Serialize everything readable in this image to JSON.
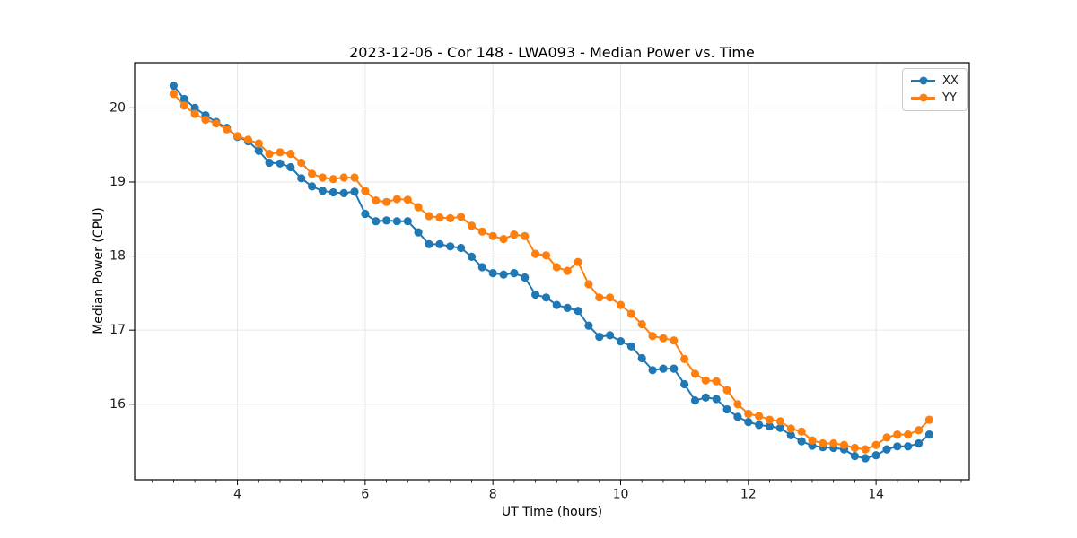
{
  "chart_data": {
    "type": "line",
    "title": "2023-12-06 - Cor 148 - LWA093 - Median Power vs. Time",
    "xlabel": "UT Time (hours)",
    "ylabel": "Median Power (CPU)",
    "x": [
      3.0,
      3.167,
      3.333,
      3.5,
      3.667,
      3.833,
      4.0,
      4.167,
      4.333,
      4.5,
      4.667,
      4.833,
      5.0,
      5.167,
      5.333,
      5.5,
      5.667,
      5.833,
      6.0,
      6.167,
      6.333,
      6.5,
      6.667,
      6.833,
      7.0,
      7.167,
      7.333,
      7.5,
      7.667,
      7.833,
      8.0,
      8.167,
      8.333,
      8.5,
      8.667,
      8.833,
      9.0,
      9.167,
      9.333,
      9.5,
      9.667,
      9.833,
      10.0,
      10.167,
      10.333,
      10.5,
      10.667,
      10.833,
      11.0,
      11.167,
      11.333,
      11.5,
      11.667,
      11.833,
      12.0,
      12.167,
      12.333,
      12.5,
      12.667,
      12.833,
      13.0,
      13.167,
      13.333,
      13.5,
      13.667,
      13.833,
      14.0,
      14.167,
      14.333,
      14.5,
      14.667,
      14.833
    ],
    "series": [
      {
        "name": "XX",
        "color": "#1f77b4",
        "values": [
          20.3,
          20.12,
          20.0,
          19.9,
          19.81,
          19.73,
          19.61,
          19.55,
          19.42,
          19.26,
          19.25,
          19.2,
          19.05,
          18.94,
          18.88,
          18.86,
          18.85,
          18.87,
          18.57,
          18.47,
          18.48,
          18.47,
          18.47,
          18.32,
          18.16,
          18.16,
          18.13,
          18.11,
          17.99,
          17.85,
          17.77,
          17.75,
          17.77,
          17.71,
          17.48,
          17.44,
          17.34,
          17.3,
          17.26,
          17.06,
          16.91,
          16.93,
          16.85,
          16.78,
          16.62,
          16.46,
          16.48,
          16.48,
          16.27,
          16.05,
          16.09,
          16.07,
          15.93,
          15.83,
          15.76,
          15.72,
          15.7,
          15.68,
          15.58,
          15.5,
          15.44,
          15.42,
          15.41,
          15.39,
          15.3,
          15.27,
          15.31,
          15.39,
          15.43,
          15.43,
          15.47,
          15.59
        ]
      },
      {
        "name": "YY",
        "color": "#ff7f0e",
        "values": [
          20.19,
          20.03,
          19.92,
          19.84,
          19.79,
          19.71,
          19.62,
          19.57,
          19.52,
          19.38,
          19.4,
          19.38,
          19.26,
          19.11,
          19.06,
          19.04,
          19.06,
          19.06,
          18.88,
          18.75,
          18.73,
          18.77,
          18.76,
          18.66,
          18.54,
          18.52,
          18.51,
          18.53,
          18.41,
          18.33,
          18.27,
          18.23,
          18.29,
          18.27,
          18.03,
          18.01,
          17.85,
          17.8,
          17.92,
          17.62,
          17.44,
          17.44,
          17.34,
          17.22,
          17.08,
          16.92,
          16.89,
          16.86,
          16.61,
          16.41,
          16.32,
          16.31,
          16.19,
          16.0,
          15.87,
          15.84,
          15.79,
          15.77,
          15.67,
          15.63,
          15.51,
          15.47,
          15.47,
          15.45,
          15.41,
          15.39,
          15.45,
          15.55,
          15.59,
          15.59,
          15.65,
          15.79
        ]
      }
    ],
    "xticks": [
      4,
      6,
      8,
      10,
      12,
      14
    ],
    "yticks": [
      16,
      17,
      18,
      19,
      20
    ],
    "xlim": [
      2.39,
      15.46
    ],
    "ylim": [
      14.98,
      20.61
    ],
    "x_minor_step": 0.333,
    "grid": "major",
    "legend": {
      "position": "upper right",
      "entries": [
        "XX",
        "YY"
      ]
    },
    "colors": {
      "grid": "#e6e6e6",
      "spine": "#000000",
      "tick_label": "#1a1a1a",
      "background": "#ffffff"
    }
  }
}
